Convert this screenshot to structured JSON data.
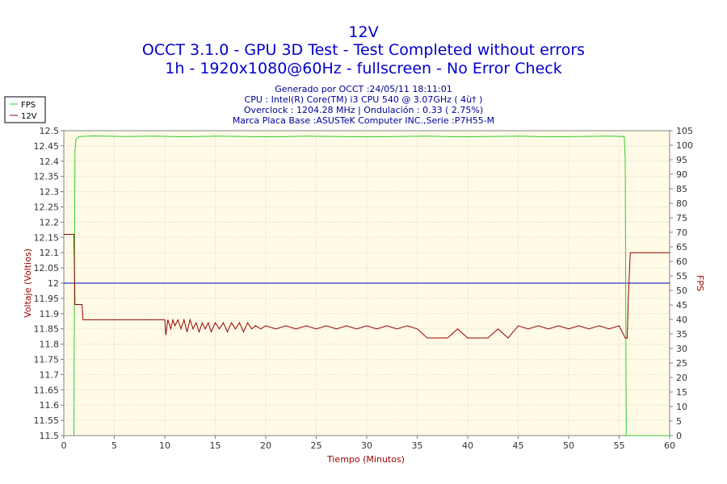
{
  "chart_data": {
    "type": "line",
    "title": "12V",
    "subtitle_lines": [
      "OCCT 3.1.0 - GPU 3D Test - Test Completed without errors",
      "1h - 1920x1080@60Hz - fullscreen - No Error Check"
    ],
    "info_lines": [
      "Generado por OCCT :24/05/11 18:11:01",
      "CPU : Intel(R) Core(TM) i3 CPU 540 @ 3.07GHz ( 4ù† )",
      "Overclock : 1204.28 MHz | Ondulación : 0.33 ( 2.75%)",
      "Marca Placa Base :ASUSTeK Computer INC.,Serie :P7H55-M"
    ],
    "xlabel": "Tiempo (Minutos)",
    "ylabel_left": "Voltaje (Voltios)",
    "ylabel_right": "FPS",
    "xlim": [
      0,
      60
    ],
    "ylim_left": [
      11.5,
      12.5
    ],
    "ylim_right": [
      0,
      105
    ],
    "x_ticks": [
      0,
      5,
      10,
      15,
      20,
      25,
      30,
      35,
      40,
      45,
      50,
      55,
      60
    ],
    "y_left_ticks": [
      "11.5",
      "11.55",
      "11.6",
      "11.65",
      "11.7",
      "11.75",
      "11.8",
      "11.85",
      "11.9",
      "11.95",
      "12",
      "12.05",
      "12.1",
      "12.15",
      "12.2",
      "12.25",
      "12.3",
      "12.35",
      "12.4",
      "12.45",
      "12.5"
    ],
    "y_right_ticks": [
      "0",
      "5",
      "10",
      "15",
      "20",
      "25",
      "30",
      "35",
      "40",
      "45",
      "50",
      "55",
      "60",
      "65",
      "70",
      "75",
      "80",
      "85",
      "90",
      "95",
      "100",
      "105"
    ],
    "reference_line": {
      "axis": "left",
      "y": 12.0,
      "color": "#0000cc"
    },
    "legend_placement": "top-left",
    "background_color": "#fffbe6",
    "series": [
      {
        "name": "FPS",
        "axis": "right",
        "color": "#33cc33",
        "points": [
          [
            0.9,
            0
          ],
          [
            1.0,
            0
          ],
          [
            1.1,
            98
          ],
          [
            1.2,
            102
          ],
          [
            1.5,
            103
          ],
          [
            3,
            103.2
          ],
          [
            6,
            103
          ],
          [
            9,
            103.1
          ],
          [
            12,
            102.9
          ],
          [
            15,
            103.1
          ],
          [
            18,
            103
          ],
          [
            21,
            102.9
          ],
          [
            24,
            103.1
          ],
          [
            27,
            103
          ],
          [
            30,
            102.9
          ],
          [
            33,
            103
          ],
          [
            36,
            103.1
          ],
          [
            39,
            102.9
          ],
          [
            42,
            103
          ],
          [
            45,
            103.1
          ],
          [
            48,
            102.9
          ],
          [
            51,
            103
          ],
          [
            54,
            103.1
          ],
          [
            55.5,
            103
          ],
          [
            55.6,
            95
          ],
          [
            55.7,
            0
          ],
          [
            60,
            0
          ]
        ]
      },
      {
        "name": "12V",
        "axis": "left",
        "color": "#990000",
        "points": [
          [
            0,
            12.16
          ],
          [
            1.0,
            12.16
          ],
          [
            1.1,
            11.93
          ],
          [
            1.8,
            11.93
          ],
          [
            1.9,
            11.88
          ],
          [
            10,
            11.88
          ],
          [
            10.1,
            11.83
          ],
          [
            10.3,
            11.88
          ],
          [
            10.6,
            11.85
          ],
          [
            10.8,
            11.88
          ],
          [
            11,
            11.86
          ],
          [
            11.3,
            11.88
          ],
          [
            11.6,
            11.85
          ],
          [
            11.9,
            11.88
          ],
          [
            12.2,
            11.84
          ],
          [
            12.5,
            11.88
          ],
          [
            12.8,
            11.85
          ],
          [
            13.1,
            11.87
          ],
          [
            13.4,
            11.84
          ],
          [
            13.7,
            11.87
          ],
          [
            14,
            11.85
          ],
          [
            14.3,
            11.87
          ],
          [
            14.6,
            11.84
          ],
          [
            15,
            11.87
          ],
          [
            15.4,
            11.85
          ],
          [
            15.8,
            11.87
          ],
          [
            16.2,
            11.84
          ],
          [
            16.6,
            11.87
          ],
          [
            17,
            11.85
          ],
          [
            17.4,
            11.87
          ],
          [
            17.8,
            11.84
          ],
          [
            18.2,
            11.87
          ],
          [
            18.6,
            11.85
          ],
          [
            19,
            11.86
          ],
          [
            19.5,
            11.85
          ],
          [
            20,
            11.86
          ],
          [
            21,
            11.85
          ],
          [
            22,
            11.86
          ],
          [
            23,
            11.85
          ],
          [
            24,
            11.86
          ],
          [
            25,
            11.85
          ],
          [
            26,
            11.86
          ],
          [
            27,
            11.85
          ],
          [
            28,
            11.86
          ],
          [
            29,
            11.85
          ],
          [
            30,
            11.86
          ],
          [
            31,
            11.85
          ],
          [
            32,
            11.86
          ],
          [
            33,
            11.85
          ],
          [
            34,
            11.86
          ],
          [
            35,
            11.85
          ],
          [
            36,
            11.82
          ],
          [
            38,
            11.82
          ],
          [
            39,
            11.85
          ],
          [
            40,
            11.82
          ],
          [
            42,
            11.82
          ],
          [
            43,
            11.85
          ],
          [
            44,
            11.82
          ],
          [
            45,
            11.86
          ],
          [
            46,
            11.85
          ],
          [
            47,
            11.86
          ],
          [
            48,
            11.85
          ],
          [
            49,
            11.86
          ],
          [
            50,
            11.85
          ],
          [
            51,
            11.86
          ],
          [
            52,
            11.85
          ],
          [
            53,
            11.86
          ],
          [
            54,
            11.85
          ],
          [
            55,
            11.86
          ],
          [
            55.6,
            11.82
          ],
          [
            55.8,
            11.82
          ],
          [
            55.9,
            11.95
          ],
          [
            56.1,
            12.1
          ],
          [
            60,
            12.1
          ]
        ]
      }
    ]
  }
}
